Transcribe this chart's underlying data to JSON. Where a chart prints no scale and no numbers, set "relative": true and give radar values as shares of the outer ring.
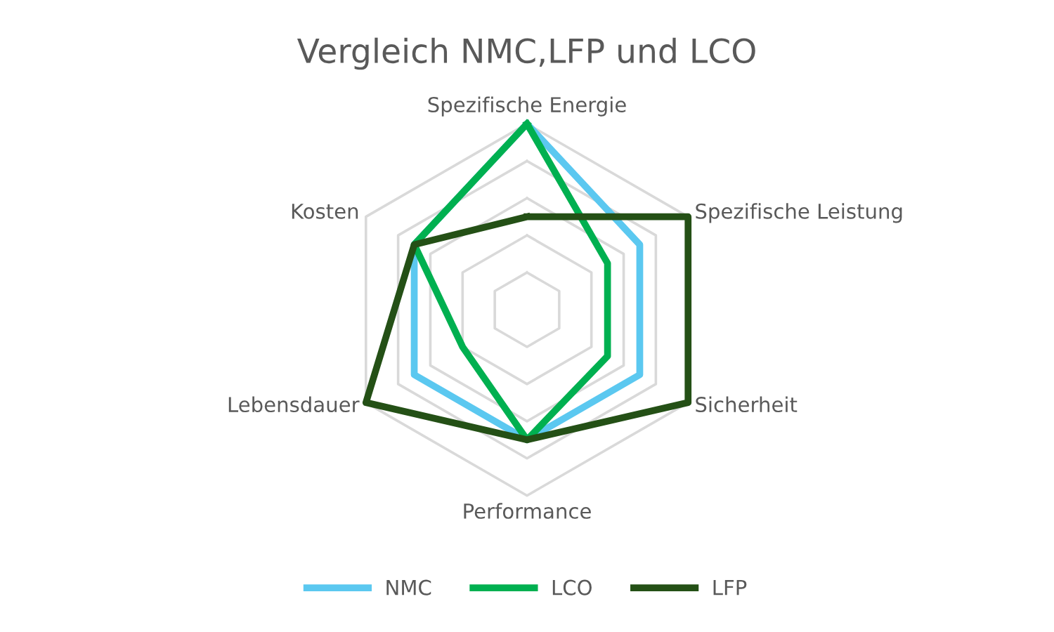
{
  "chart_data": {
    "type": "radar",
    "title": "Vergleich NMC,LFP und LCO",
    "categories": [
      "Spezifische Energie",
      "Spezifische Leistung",
      "Sicherheit",
      "Performance",
      "Lebensdauer",
      "Kosten"
    ],
    "relative": true,
    "grid": true,
    "legend": "bottom",
    "marker": "none",
    "line_style": "solid",
    "series": [
      {
        "name": "NMC",
        "color": "#5bc8f0",
        "values": [
          1,
          0.7,
          0.7,
          0.7,
          0.7,
          0.7
        ]
      },
      {
        "name": "LCO",
        "color": "#00b050",
        "values": [
          1,
          0.5,
          0.5,
          0.7,
          0.4,
          0.7
        ]
      },
      {
        "name": "LFP",
        "color": "#245016",
        "values": [
          0.5,
          1,
          1,
          0.7,
          1,
          0.7
        ]
      }
    ]
  }
}
